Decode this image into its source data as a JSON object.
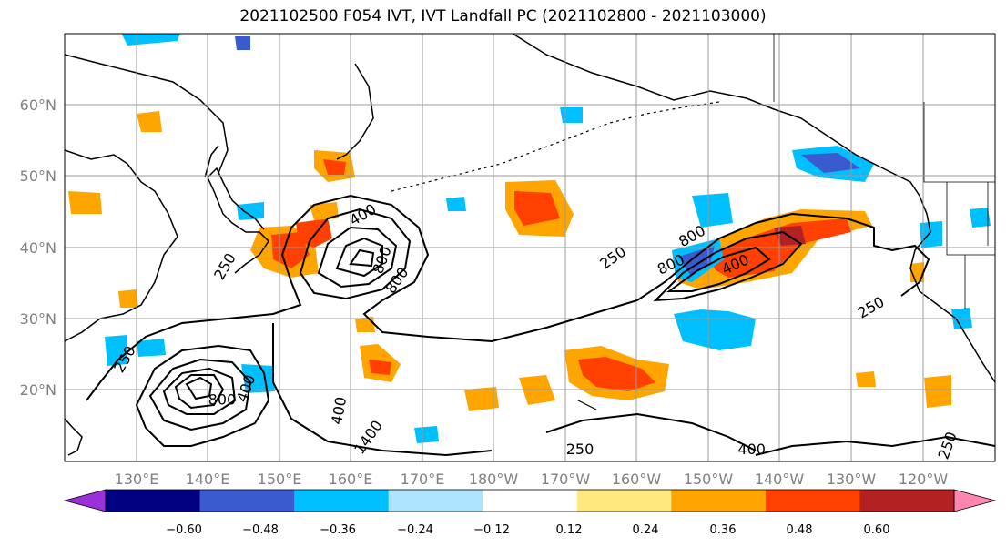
{
  "title": "2021102500 F054 IVT, IVT Landfall PC (2021102800 - 2021103000)",
  "lon_labels": [
    "130°E",
    "140°E",
    "150°E",
    "160°E",
    "170°E",
    "180°W",
    "170°W",
    "160°W",
    "150°W",
    "140°W",
    "130°W",
    "120°W"
  ],
  "lat_labels": [
    "60°N",
    "50°N",
    "40°N",
    "30°N",
    "20°N"
  ],
  "colorbar": {
    "colors": [
      "#9b30d8",
      "#000080",
      "#3a5bd0",
      "#00bfff",
      "#aee4ff",
      "#ffffff",
      "#ffe97f",
      "#ffa500",
      "#ff4000",
      "#b22222",
      "#ff85b3"
    ],
    "tick_labels": [
      "−0.60",
      "−0.48",
      "−0.36",
      "−0.24",
      "−0.12",
      "0.12",
      "0.24",
      "0.36",
      "0.48",
      "0.60"
    ]
  },
  "contour_labels": [
    {
      "text": "250",
      "lon": 129,
      "lat": 24,
      "rot": -60
    },
    {
      "text": "250",
      "lon": 143,
      "lat": 37,
      "rot": -60
    },
    {
      "text": "400",
      "lon": 162,
      "lat": 44,
      "rot": -30
    },
    {
      "text": "400",
      "lon": 146,
      "lat": 20,
      "rot": -70
    },
    {
      "text": "800",
      "lon": 165,
      "lat": 38,
      "rot": -70
    },
    {
      "text": "800",
      "lon": 167,
      "lat": 35,
      "rot": -55
    },
    {
      "text": "800",
      "lon": 142,
      "lat": 18,
      "rot": 0
    },
    {
      "text": "400",
      "lon": 159,
      "lat": 17,
      "rot": -80
    },
    {
      "text": "1400",
      "lon": 163,
      "lat": 13,
      "rot": -55
    },
    {
      "text": "250",
      "lon": 197,
      "lat": 38,
      "rot": -35
    },
    {
      "text": "800",
      "lon": 208,
      "lat": 41,
      "rot": -30
    },
    {
      "text": "800",
      "lon": 205,
      "lat": 37,
      "rot": -25
    },
    {
      "text": "400",
      "lon": 214,
      "lat": 37,
      "rot": -25
    },
    {
      "text": "250",
      "lon": 233,
      "lat": 31,
      "rot": -30
    },
    {
      "text": "250",
      "lon": 192,
      "lat": 11,
      "rot": 0
    },
    {
      "text": "400",
      "lon": 216,
      "lat": 11,
      "rot": 0
    },
    {
      "text": "250",
      "lon": 244,
      "lat": 12,
      "rot": -70
    }
  ]
}
